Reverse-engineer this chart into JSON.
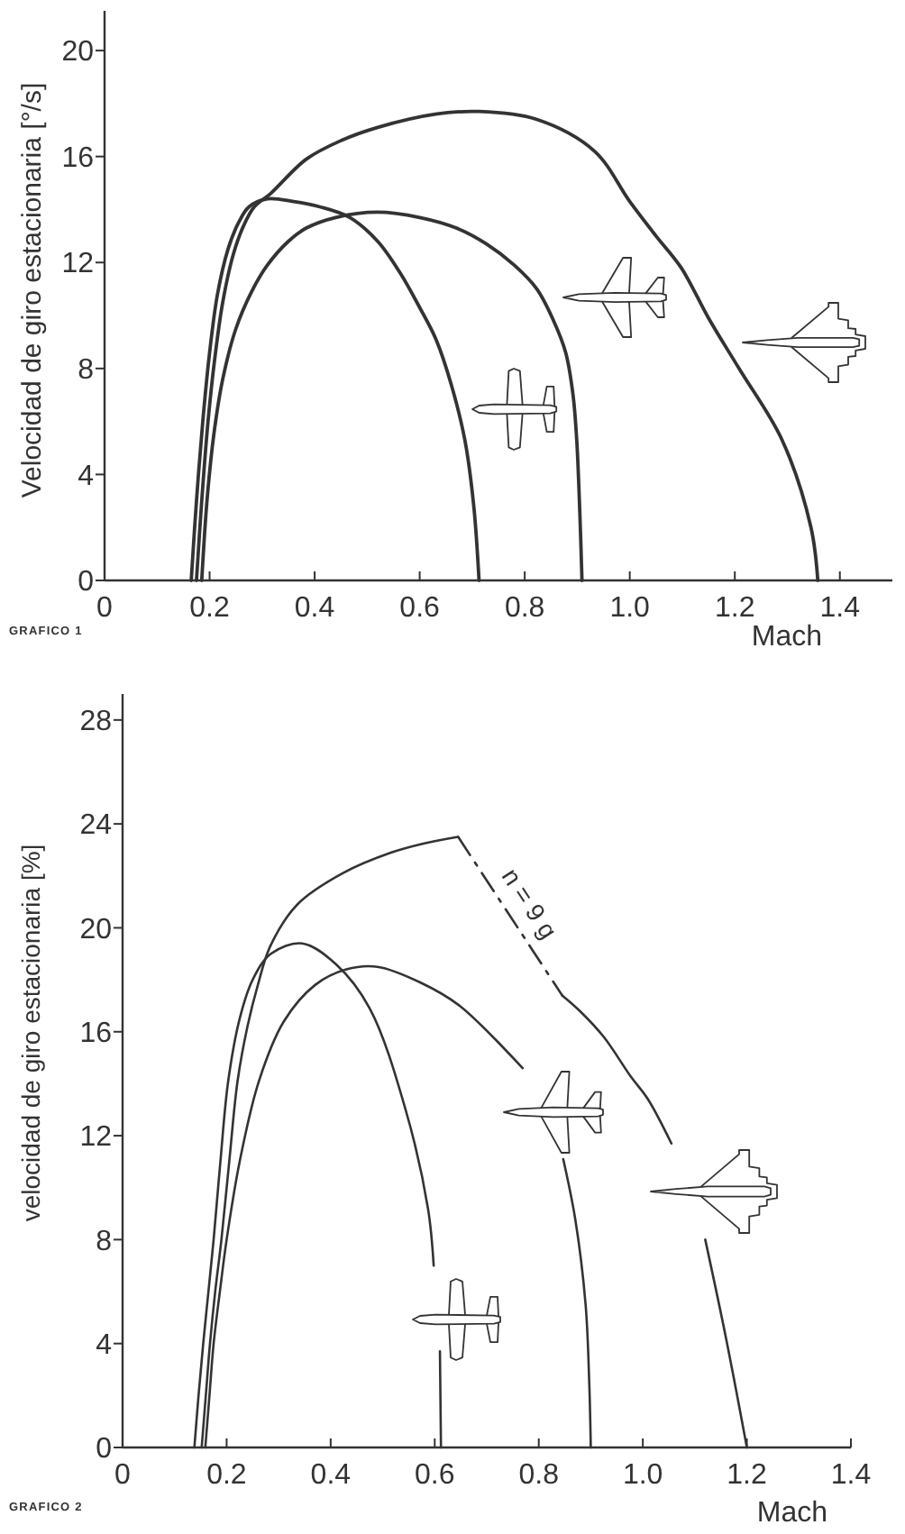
{
  "chart_data": [
    {
      "type": "line",
      "ylabel": "Velocidad de giro estacionaria [°/s]",
      "xlabel": "Mach",
      "xlim": [
        0,
        1.5
      ],
      "xticks": [
        0,
        0.2,
        0.4,
        0.6,
        0.8,
        {
          "value": 1,
          "label": "1.0"
        },
        1.2,
        1.4
      ],
      "ylim": [
        0,
        21.5
      ],
      "yticks": [
        0,
        4,
        8,
        12,
        16,
        20
      ],
      "annotations": [
        "GRAFICO 1"
      ],
      "series": [
        {
          "color": "#333333",
          "x": [
            0.165,
            0.175,
            0.187,
            0.2,
            0.215,
            0.235,
            0.255,
            0.275,
            0.31,
            0.36,
            0.41,
            0.467,
            0.52,
            0.563,
            0.6,
            0.631,
            0.66,
            0.686,
            0.703,
            0.713
          ],
          "values": [
            0,
            3,
            6,
            8.6,
            10.8,
            12.5,
            13.5,
            14.1,
            14.4,
            14.3,
            14.1,
            13.7,
            12.8,
            11.6,
            10.3,
            9.1,
            7.4,
            5.3,
            2.8,
            0
          ]
        },
        {
          "color": "#333333",
          "x": [
            0.175,
            0.185,
            0.197,
            0.21,
            0.225,
            0.245,
            0.265,
            0.285,
            0.316,
            0.384,
            0.45,
            0.52,
            0.63,
            0.713,
            0.823,
            0.933,
            1.0,
            1.05,
            1.098,
            1.15,
            1.208,
            1.29,
            1.345,
            1.358
          ],
          "values": [
            0,
            3,
            6,
            8.4,
            10.5,
            12.3,
            13.4,
            14.1,
            14.6,
            15.9,
            16.6,
            17.1,
            17.6,
            17.7,
            17.4,
            16.2,
            14.3,
            13,
            11.8,
            9.9,
            8,
            5.3,
            2,
            0
          ]
        },
        {
          "color": "#333333",
          "x": [
            0.185,
            0.195,
            0.208,
            0.225,
            0.25,
            0.28,
            0.31,
            0.35,
            0.384,
            0.44,
            0.52,
            0.6,
            0.67,
            0.727,
            0.78,
            0.823,
            0.855,
            0.878,
            0.892,
            0.899,
            0.905,
            0.909
          ],
          "values": [
            0,
            3,
            5.5,
            7.6,
            9.5,
            10.9,
            11.9,
            12.8,
            13.3,
            13.7,
            13.9,
            13.7,
            13.3,
            12.7,
            11.9,
            11,
            9.8,
            8.6,
            7,
            5.3,
            2.5,
            0
          ]
        }
      ]
    },
    {
      "type": "line",
      "ylabel": "velocidad de giro estacionaria [%]",
      "xlabel": "Mach",
      "xlim": [
        0,
        1.4
      ],
      "xticks": [
        0,
        0.2,
        0.4,
        0.6,
        0.8,
        {
          "value": 1,
          "label": "1.0"
        },
        1.2,
        1.4
      ],
      "ylim": [
        0,
        29
      ],
      "yticks": [
        0,
        4,
        8,
        12,
        16,
        20,
        24,
        28
      ],
      "annotations": [
        "GRAFICO 2"
      ],
      "series": [
        {
          "color": "#333333",
          "x": [
            0.138,
            0.146,
            0.155,
            0.165,
            0.175,
            0.188,
            0.203,
            0.225,
            0.25,
            0.285,
            0.345,
            0.41,
            0.475,
            0.544,
            0.587,
            0.598,
            0.6,
            0.61,
            0.612
          ],
          "values": [
            0,
            2,
            4,
            6,
            8,
            11,
            14.1,
            16.5,
            18,
            19,
            19.4,
            18.6,
            16.9,
            13,
            9.2,
            7,
            null,
            3.7,
            0
          ]
        },
        {
          "color": "#333333",
          "x": [
            0.152,
            0.16,
            0.168,
            0.178,
            0.19,
            0.205,
            0.221,
            0.24,
            0.26,
            0.284,
            0.336,
            0.423,
            0.517,
            0.58,
            0.645
          ],
          "values": [
            0,
            2,
            4,
            6,
            8,
            11,
            14.1,
            16.2,
            17.8,
            19.3,
            20.9,
            22.1,
            22.9,
            23.25,
            23.5
          ]
        },
        {
          "name": "n = 9 g",
          "color": "#333333",
          "line_style": "dashed",
          "x": [
            0.645,
            0.845
          ],
          "values": [
            23.5,
            17.4
          ]
        },
        {
          "color": "#333333",
          "x": [
            0.845,
            0.879,
            0.925,
            0.976,
            1.01,
            1.055,
            1.09,
            1.12,
            1.16,
            1.2
          ],
          "values": [
            17.4,
            16.8,
            15.8,
            14.3,
            13.4,
            11.7,
            null,
            8,
            4.2,
            0
          ]
        },
        {
          "color": "#333333",
          "x": [
            0.159,
            0.167,
            0.175,
            0.187,
            0.2,
            0.225,
            0.262,
            0.31,
            0.37,
            0.43,
            0.49,
            0.572,
            0.648,
            0.769,
            0.81,
            0.847,
            0.87,
            0.89,
            0.897,
            0.9
          ],
          "values": [
            0,
            2,
            4,
            6,
            8,
            11,
            14.1,
            16.4,
            17.8,
            18.4,
            18.5,
            17.9,
            17,
            14.6,
            null,
            11.1,
            8.8,
            5.5,
            2.5,
            0
          ]
        }
      ]
    }
  ]
}
